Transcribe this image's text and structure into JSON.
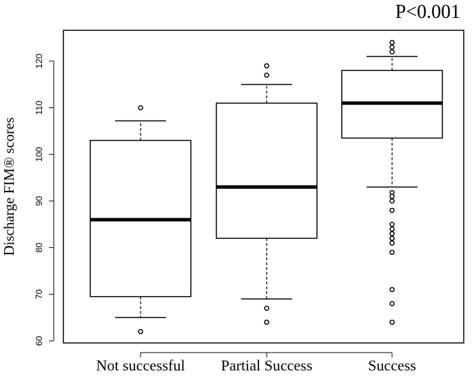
{
  "chart_data": {
    "type": "box",
    "title": "",
    "annotation": "P<0.001",
    "xlabel": "",
    "ylabel": "Discharge FIM® scores",
    "ylim": [
      60,
      124
    ],
    "yticks": [
      60,
      70,
      80,
      90,
      100,
      110,
      120
    ],
    "categories": [
      "Not successful",
      "Partial Success",
      "Success"
    ],
    "boxes": [
      {
        "category": "Not successful",
        "whisker_low": 65,
        "q1": 69.5,
        "median": 86,
        "q3": 103,
        "whisker_high": 107.2,
        "outliers": [
          110,
          62
        ]
      },
      {
        "category": "Partial Success",
        "whisker_low": 69,
        "q1": 82,
        "median": 93,
        "q3": 111,
        "whisker_high": 115,
        "outliers": [
          119,
          117,
          67,
          64
        ]
      },
      {
        "category": "Success",
        "whisker_low": 93,
        "q1": 103.5,
        "median": 111,
        "q3": 118,
        "whisker_high": 121,
        "outliers": [
          124,
          123,
          122,
          91.8,
          91,
          90,
          88,
          85,
          84,
          83,
          82,
          81,
          79,
          71,
          68,
          64
        ]
      }
    ],
    "grid": false,
    "legend": "none"
  }
}
